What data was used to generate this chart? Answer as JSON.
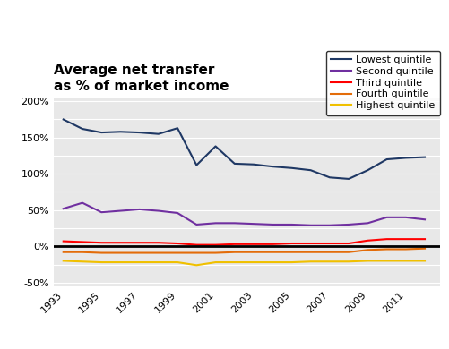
{
  "title": "Average net transfer\nas % of market income",
  "years": [
    1993,
    1994,
    1995,
    1996,
    1997,
    1998,
    1999,
    2000,
    2001,
    2002,
    2003,
    2004,
    2005,
    2006,
    2007,
    2008,
    2009,
    2010,
    2011,
    2012
  ],
  "series": {
    "Lowest quintile": {
      "color": "#1f3864",
      "values": [
        1.75,
        1.62,
        1.57,
        1.58,
        1.57,
        1.55,
        1.63,
        1.12,
        1.38,
        1.14,
        1.13,
        1.1,
        1.08,
        1.05,
        0.95,
        0.93,
        1.05,
        1.2,
        1.22,
        1.23
      ]
    },
    "Second quintile": {
      "color": "#7030a0",
      "values": [
        0.52,
        0.6,
        0.47,
        0.49,
        0.51,
        0.49,
        0.46,
        0.3,
        0.32,
        0.32,
        0.31,
        0.3,
        0.3,
        0.29,
        0.29,
        0.3,
        0.32,
        0.4,
        0.4,
        0.37
      ]
    },
    "Third quintile": {
      "color": "#ff0000",
      "values": [
        0.07,
        0.06,
        0.05,
        0.05,
        0.05,
        0.05,
        0.04,
        0.02,
        0.02,
        0.03,
        0.03,
        0.03,
        0.04,
        0.04,
        0.04,
        0.04,
        0.08,
        0.1,
        0.1,
        0.1
      ]
    },
    "Fourth quintile": {
      "color": "#e36c09",
      "values": [
        -0.08,
        -0.08,
        -0.09,
        -0.09,
        -0.09,
        -0.09,
        -0.09,
        -0.09,
        -0.09,
        -0.08,
        -0.08,
        -0.08,
        -0.08,
        -0.08,
        -0.08,
        -0.08,
        -0.05,
        -0.04,
        -0.04,
        -0.03
      ]
    },
    "Highest quintile": {
      "color": "#f0c000",
      "values": [
        -0.2,
        -0.21,
        -0.22,
        -0.22,
        -0.22,
        -0.22,
        -0.22,
        -0.26,
        -0.22,
        -0.22,
        -0.22,
        -0.22,
        -0.22,
        -0.21,
        -0.21,
        -0.21,
        -0.2,
        -0.2,
        -0.2,
        -0.2
      ]
    }
  },
  "fig_bg": "#ffffff",
  "plot_bg": "#e8e8e8",
  "legend_bg": "#ffffff",
  "ytick_labels": [
    "-50%",
    "",
    "0%",
    "",
    "50%",
    "",
    "100%",
    "",
    "150%",
    "",
    "200%"
  ],
  "ytick_vals": [
    -0.5,
    -0.25,
    0.0,
    0.25,
    0.5,
    0.75,
    1.0,
    1.25,
    1.5,
    1.75,
    2.0
  ],
  "xlim": [
    1992.5,
    2012.8
  ],
  "ylim": [
    -0.55,
    2.05
  ],
  "xtick_vals": [
    1993,
    1995,
    1997,
    1999,
    2001,
    2003,
    2005,
    2007,
    2009,
    2011
  ]
}
